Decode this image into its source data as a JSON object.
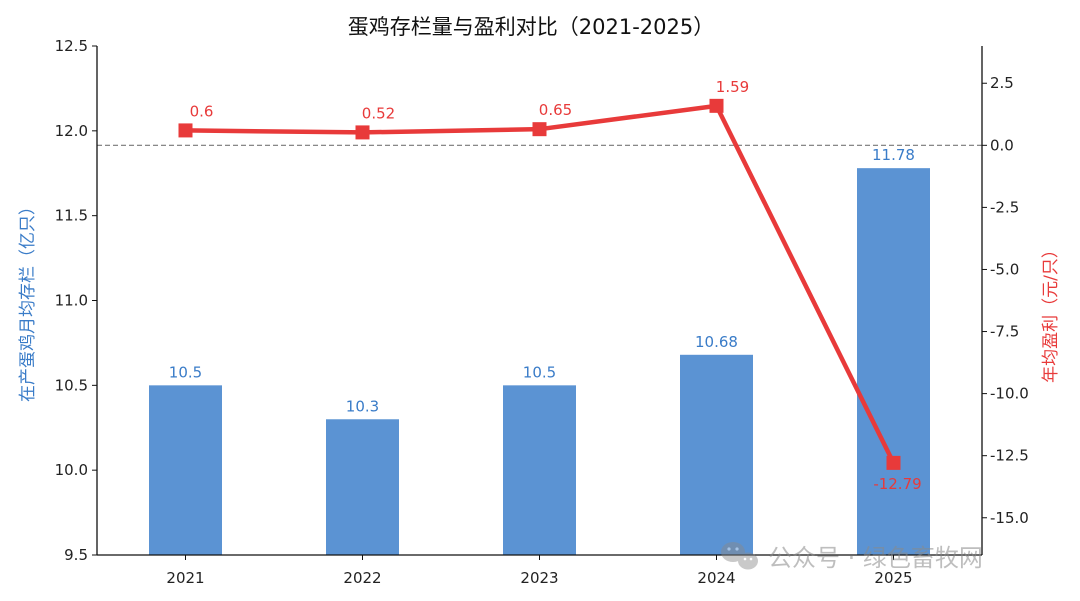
{
  "chart_data": {
    "type": "bar",
    "title": "蛋鸡存栏量与盈利对比（2021-2025）",
    "categories": [
      "2021",
      "2022",
      "2023",
      "2024",
      "2025"
    ],
    "bar_series": {
      "name": "在产蛋鸡月均存栏",
      "values": [
        10.5,
        10.3,
        10.5,
        10.68,
        11.78
      ],
      "value_labels": [
        "10.5",
        "10.3",
        "10.5",
        "10.68",
        "11.78"
      ],
      "color": "#5b93d3",
      "label_color": "#3a7cc8"
    },
    "line_series": {
      "type": "line",
      "name": "年均盈利",
      "values": [
        0.6,
        0.52,
        0.65,
        1.59,
        -12.79
      ],
      "value_labels": [
        "0.6",
        "0.52",
        "0.65",
        "1.59",
        "-12.79"
      ],
      "color": "#e83a3a",
      "marker": "square"
    },
    "ylabel_left": "在产蛋鸡月均存栏（亿只）",
    "ylabel_right": "年均盈利（元/只）",
    "ylim_left": [
      9.5,
      12.5
    ],
    "yticks_left": [
      "9.5",
      "10.0",
      "10.5",
      "11.0",
      "11.5",
      "12.0",
      "12.5"
    ],
    "ylim_right": [
      -16.5,
      4.0
    ],
    "yticks_right": [
      "-15.0",
      "-12.5",
      "-10.0",
      "-7.5",
      "-5.0",
      "-2.5",
      "0.0",
      "2.5"
    ],
    "reference_line": {
      "value": 0,
      "axis": "right",
      "style": "dashed",
      "color": "#777777"
    },
    "grid": false
  },
  "watermark": {
    "text": "公众号 · 绿色畜牧网",
    "icon": "wechat-icon"
  }
}
